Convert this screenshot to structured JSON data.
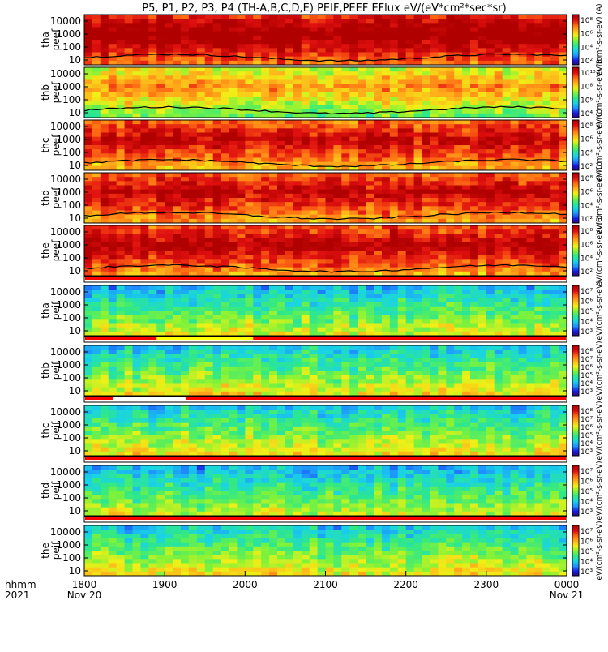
{
  "title": "P5, P1, P2, P3, P4 (TH-A,B,C,D,E) PEIF,PEEF EFlux eV/(eV*cm²*sec*sr)",
  "colors": {
    "palette": [
      "#2b0a6e",
      "#1a1ae0",
      "#1e90ff",
      "#19d3e6",
      "#2ee88a",
      "#7df23a",
      "#f0f016",
      "#ffb01a",
      "#ff6a13",
      "#e01010",
      "#b00000"
    ],
    "bar_red": "#ff0000",
    "bar_yellow": "#ffff00",
    "curve": "#000000"
  },
  "chart_data": {
    "type": "heatmap",
    "x_axis": {
      "row1_label": "hhmm",
      "row2_label": "2021",
      "ticks": [
        "1800",
        "1900",
        "2000",
        "2100",
        "2200",
        "2300",
        "0000"
      ],
      "dates": [
        "Nov 20",
        "",
        "",
        "",
        "",
        "",
        "Nov 21"
      ],
      "range_hhmm": [
        "1800",
        "0000"
      ]
    },
    "y_ticks": [
      "10000",
      "1000",
      "100",
      "10"
    ],
    "ylim_eV": [
      5,
      30000
    ],
    "y_scale": "log",
    "panels": [
      {
        "label": "tha\npeef",
        "species": "electron",
        "probe": "A",
        "level": 0.82,
        "curve": true,
        "colorbar_ticks": [
          "10⁸",
          "10⁶",
          "10⁴",
          "10²"
        ],
        "colorbar_label": "eV/(cm²-s-sr-eV) (A)"
      },
      {
        "label": "thb\npeef",
        "species": "electron",
        "probe": "B",
        "level": 0.5,
        "curve": true,
        "colorbar_ticks": [
          "10¹⁰",
          "10⁸",
          "10⁶",
          "10⁴"
        ],
        "colorbar_label": "eV/(cm²-s-sr-eV) (B)"
      },
      {
        "label": "thc\npeef",
        "species": "electron",
        "probe": "C",
        "level": 0.72,
        "curve": true,
        "colorbar_ticks": [
          "10⁸",
          "10⁶",
          "10⁴",
          "10²"
        ],
        "colorbar_label": "eV/(cm²-s-sr-eV) (C)"
      },
      {
        "label": "thd\npeef",
        "species": "electron",
        "probe": "D",
        "level": 0.74,
        "curve": true,
        "colorbar_ticks": [
          "10⁸",
          "10⁶",
          "10⁴",
          "10²"
        ],
        "colorbar_label": "eV/(cm²-s-sr-eV) (D)"
      },
      {
        "label": "the\npeef",
        "species": "electron",
        "probe": "E",
        "level": 0.76,
        "curve": true,
        "colorbar_ticks": [
          "10⁸",
          "10⁶",
          "10⁴",
          "10²"
        ],
        "colorbar_label": "eV/(cm²-s-sr-eV) (E)"
      },
      {
        "label": "tha\npeif",
        "species": "ion",
        "probe": "A",
        "level": 0.52,
        "curve": false,
        "colorbar_ticks": [
          "10⁷",
          "10⁶",
          "10⁵",
          "10⁴",
          "10³"
        ],
        "colorbar_label": "eV/(cm²-s-sr-eV)"
      },
      {
        "label": "thb\npeif",
        "species": "ion",
        "probe": "B",
        "level": 0.55,
        "curve": false,
        "colorbar_ticks": [
          "10⁸",
          "10⁷",
          "10⁶",
          "10⁵",
          "10⁴",
          "10³"
        ],
        "colorbar_label": "eV/(cm²-s-sr-eV)"
      },
      {
        "label": "thc\npeif",
        "species": "ion",
        "probe": "C",
        "level": 0.55,
        "curve": false,
        "colorbar_ticks": [
          "10⁸",
          "10⁷",
          "10⁶",
          "10⁵",
          "10⁴",
          "10³"
        ],
        "colorbar_label": "eV/(cm²-s-sr-eV)"
      },
      {
        "label": "thd\npeif",
        "species": "ion",
        "probe": "D",
        "level": 0.5,
        "curve": false,
        "colorbar_ticks": [
          "10⁷",
          "10⁶",
          "10⁵",
          "10⁴",
          "10³"
        ],
        "colorbar_label": "eV/(cm²-s-sr-eV)"
      },
      {
        "label": "the\npeif",
        "species": "ion",
        "probe": "E",
        "level": 0.55,
        "curve": false,
        "colorbar_ticks": [
          "10⁷",
          "10⁶",
          "10⁵",
          "10⁴",
          "10³"
        ],
        "colorbar_label": "eV/(cm²-s-sr-eV)"
      }
    ],
    "flag_bars": [
      {
        "between": "the peef / tha peif",
        "color": "red"
      },
      {
        "between": "tha peif / thb peif",
        "color": "red/yellow"
      },
      {
        "between": "thb peif / thc peif",
        "color": "red/white"
      },
      {
        "between": "thc peif / thd peif",
        "color": "red"
      },
      {
        "between": "thd peif / the peif",
        "color": "red"
      }
    ]
  }
}
